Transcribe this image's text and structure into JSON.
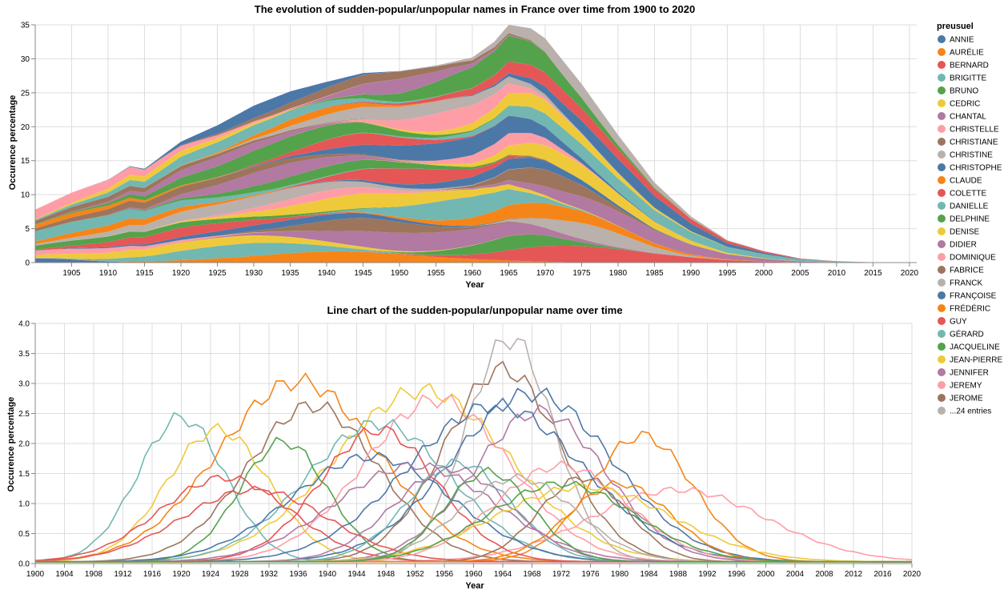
{
  "chart_data": [
    {
      "type": "area",
      "title": "The evolution of sudden-popular/unpopular names in France over time from 1900 to 2020",
      "xlabel": "Year",
      "ylabel": "Occurence percentage",
      "xlim": [
        1900,
        2021
      ],
      "ylim": [
        0,
        35
      ],
      "x_ticks": [
        1905,
        1910,
        1915,
        1920,
        1925,
        1930,
        1935,
        1940,
        1945,
        1950,
        1955,
        1960,
        1965,
        1970,
        1975,
        1980,
        1985,
        1990,
        1995,
        2000,
        2005,
        2010,
        2015,
        2020
      ],
      "y_ticks": [
        0,
        5,
        10,
        15,
        20,
        25,
        30,
        35
      ],
      "grid": true,
      "stacked": true,
      "total_profile": {
        "x": [
          1900,
          1905,
          1910,
          1913,
          1915,
          1920,
          1925,
          1930,
          1935,
          1940,
          1945,
          1950,
          1955,
          1960,
          1963,
          1965,
          1968,
          1970,
          1975,
          1980,
          1985,
          1990,
          1995,
          2000,
          2005,
          2010,
          2015,
          2020
        ],
        "y": [
          7.8,
          10.3,
          12.2,
          14.2,
          13.8,
          17.8,
          20.2,
          23.1,
          25.2,
          26.6,
          27.9,
          28.2,
          29,
          30.2,
          32.5,
          35,
          34.5,
          33,
          26.3,
          18.8,
          11.8,
          6.8,
          3.3,
          1.7,
          0.6,
          0.2,
          0.05,
          0.05
        ]
      }
    },
    {
      "type": "line",
      "title": "Line chart of the sudden-popular/unpopular name over time",
      "xlabel": "Year",
      "ylabel": "Occurence percentage",
      "xlim": [
        1900,
        2020
      ],
      "ylim": [
        0,
        4
      ],
      "x_ticks": [
        1900,
        1904,
        1908,
        1912,
        1916,
        1920,
        1924,
        1928,
        1932,
        1936,
        1940,
        1944,
        1948,
        1952,
        1956,
        1960,
        1964,
        1968,
        1972,
        1976,
        1980,
        1984,
        1988,
        1992,
        1996,
        2000,
        2004,
        2008,
        2012,
        2016,
        2020
      ],
      "y_ticks": [
        0,
        0.5,
        1,
        1.5,
        2,
        2.5,
        3,
        3.5,
        4
      ],
      "y_tick_labels": [
        "0.0",
        "0.5",
        "1.0",
        "1.5",
        "2.0",
        "2.5",
        "3.0",
        "3.5",
        "4.0"
      ],
      "grid": true,
      "peak_samples": [
        {
          "name": "DANIELLE",
          "peak_year": 1920,
          "peak": 2.4
        },
        {
          "name": "CLAUDE",
          "peak_year": 1936,
          "peak": 3.0
        },
        {
          "name": "CHRISTIANE",
          "peak_year": 1938,
          "peak": 2.6
        },
        {
          "name": "DENISE",
          "peak_year": 1925,
          "peak": 2.2
        },
        {
          "name": "JEAN-PIERRE",
          "peak_year": 1953,
          "peak": 2.85
        },
        {
          "name": "DOMINIQUE",
          "peak_year": 1955,
          "peak": 2.7
        },
        {
          "name": "FABRICE",
          "peak_year": 1964,
          "peak": 3.2
        },
        {
          "name": "CHRISTINE",
          "peak_year": 1965,
          "peak": 3.72
        },
        {
          "name": "FRANÇOISE",
          "peak_year": 1968,
          "peak": 2.8
        },
        {
          "name": "JENNIFER",
          "peak_year": 1969,
          "peak": 2.5
        },
        {
          "name": "FRÉDÉRIC",
          "peak_year": 1983,
          "peak": 2.1
        },
        {
          "name": "JEREMY",
          "peak_year": 1988,
          "peak": 1.2
        },
        {
          "name": "GÉRARD",
          "peak_year": 1947,
          "peak": 2.3
        },
        {
          "name": "BERNARD",
          "peak_year": 1947,
          "peak": 2.2
        },
        {
          "name": "JACQUELINE",
          "peak_year": 1934,
          "peak": 2.0
        },
        {
          "name": "ANNIE",
          "peak_year": 1946,
          "peak": 1.75
        },
        {
          "name": "COLETTE",
          "peak_year": 1926,
          "peak": 1.4
        },
        {
          "name": "BRIGITTE",
          "peak_year": 1958,
          "peak": 1.65
        },
        {
          "name": "CHRISTOPHE",
          "peak_year": 1963,
          "peak": 2.6
        },
        {
          "name": "GUY",
          "peak_year": 1930,
          "peak": 1.2
        },
        {
          "name": "DIDIER",
          "peak_year": 1957,
          "peak": 1.55
        },
        {
          "name": "JEROME",
          "peak_year": 1975,
          "peak": 1.4
        },
        {
          "name": "CHANTAL",
          "peak_year": 1952,
          "peak": 1.6
        },
        {
          "name": "CHRISTELLE",
          "peak_year": 1972,
          "peak": 1.6
        },
        {
          "name": "AURÉLIE",
          "peak_year": 1980,
          "peak": 1.3
        },
        {
          "name": "CEDRIC",
          "peak_year": 1975,
          "peak": 1.25
        },
        {
          "name": "DELPHINE",
          "peak_year": 1972,
          "peak": 1.3
        },
        {
          "name": "FRANCK",
          "peak_year": 1966,
          "peak": 1.4
        },
        {
          "name": "BRUNO",
          "peak_year": 1962,
          "peak": 1.5
        }
      ]
    }
  ],
  "legend": {
    "title": "preusuel",
    "more_label": "...24 entries",
    "more_color": "#bab0ac",
    "entries": [
      {
        "name": "ANNIE",
        "color": "#4c78a8"
      },
      {
        "name": "AURÉLIE",
        "color": "#f58518"
      },
      {
        "name": "BERNARD",
        "color": "#e45756"
      },
      {
        "name": "BRIGITTE",
        "color": "#72b7b2"
      },
      {
        "name": "BRUNO",
        "color": "#54a24b"
      },
      {
        "name": "CEDRIC",
        "color": "#eeca3b"
      },
      {
        "name": "CHANTAL",
        "color": "#b279a2"
      },
      {
        "name": "CHRISTELLE",
        "color": "#ff9da6"
      },
      {
        "name": "CHRISTIANE",
        "color": "#9d755d"
      },
      {
        "name": "CHRISTINE",
        "color": "#bab0ac"
      },
      {
        "name": "CHRISTOPHE",
        "color": "#4c78a8"
      },
      {
        "name": "CLAUDE",
        "color": "#f58518"
      },
      {
        "name": "COLETTE",
        "color": "#e45756"
      },
      {
        "name": "DANIELLE",
        "color": "#72b7b2"
      },
      {
        "name": "DELPHINE",
        "color": "#54a24b"
      },
      {
        "name": "DENISE",
        "color": "#eeca3b"
      },
      {
        "name": "DIDIER",
        "color": "#b279a2"
      },
      {
        "name": "DOMINIQUE",
        "color": "#ff9da6"
      },
      {
        "name": "FABRICE",
        "color": "#9d755d"
      },
      {
        "name": "FRANCK",
        "color": "#bab0ac"
      },
      {
        "name": "FRANÇOISE",
        "color": "#4c78a8"
      },
      {
        "name": "FRÉDÉRIC",
        "color": "#f58518"
      },
      {
        "name": "GUY",
        "color": "#e45756"
      },
      {
        "name": "GÉRARD",
        "color": "#72b7b2"
      },
      {
        "name": "JACQUELINE",
        "color": "#54a24b"
      },
      {
        "name": "JEAN-PIERRE",
        "color": "#eeca3b"
      },
      {
        "name": "JENNIFER",
        "color": "#b279a2"
      },
      {
        "name": "JEREMY",
        "color": "#ff9da6"
      },
      {
        "name": "JEROME",
        "color": "#9d755d"
      }
    ]
  }
}
